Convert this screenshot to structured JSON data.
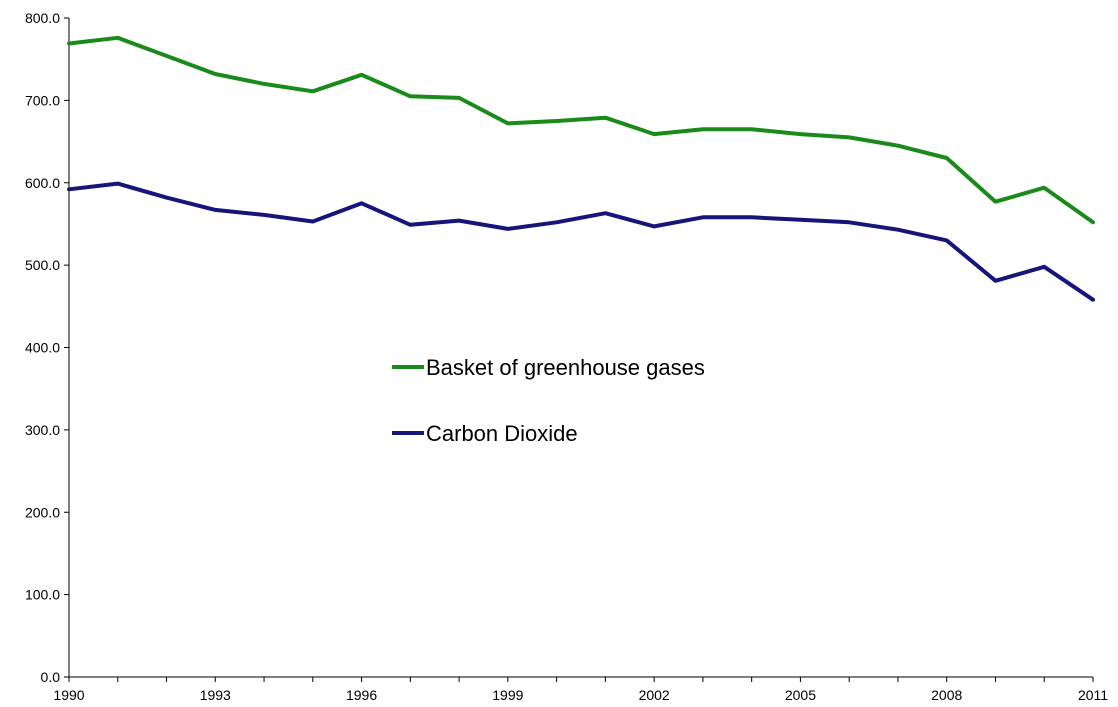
{
  "chart_data": {
    "type": "line",
    "title": "",
    "xlabel": "",
    "ylabel": "",
    "x": [
      1990,
      1991,
      1992,
      1993,
      1994,
      1995,
      1996,
      1997,
      1998,
      1999,
      2000,
      2001,
      2002,
      2003,
      2004,
      2005,
      2006,
      2007,
      2008,
      2009,
      2010,
      2011
    ],
    "x_tick_labels": [
      "1990",
      "1993",
      "1996",
      "1999",
      "2002",
      "2005",
      "2008",
      "2011"
    ],
    "ylim": [
      0,
      800
    ],
    "y_tick_labels": [
      "0.0",
      "100.0",
      "200.0",
      "300.0",
      "400.0",
      "500.0",
      "600.0",
      "700.0",
      "800.0"
    ],
    "grid": false,
    "legend_position": "center",
    "series": [
      {
        "name": "Basket of greenhouse gases",
        "color": "#1a8a1a",
        "values": [
          769,
          776,
          754,
          732,
          720,
          711,
          731,
          705,
          703,
          672,
          675,
          679,
          659,
          665,
          665,
          659,
          655,
          645,
          630,
          577,
          594,
          552
        ]
      },
      {
        "name": "Carbon Dioxide",
        "color": "#15157a",
        "values": [
          592,
          599,
          582,
          567,
          561,
          553,
          575,
          549,
          554,
          544,
          552,
          563,
          547,
          558,
          558,
          555,
          552,
          543,
          530,
          481,
          498,
          458
        ]
      }
    ]
  }
}
